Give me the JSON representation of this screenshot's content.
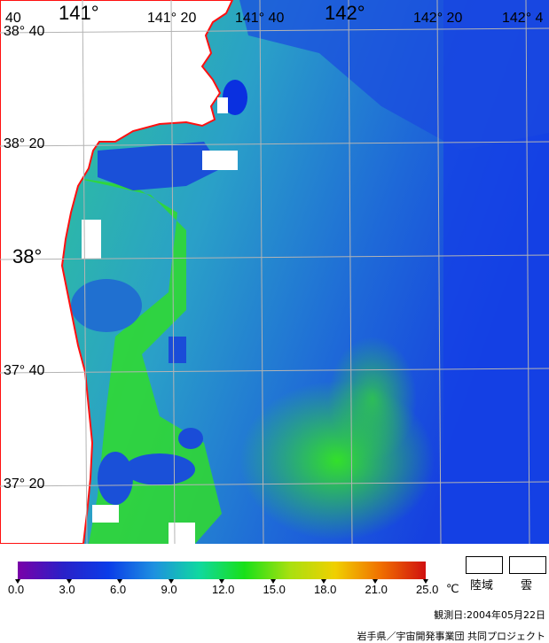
{
  "map": {
    "lon_labels": [
      {
        "text": "141°",
        "style": "big"
      },
      {
        "text": "141° 20",
        "style": "small"
      },
      {
        "text": "141° 40",
        "style": "small"
      },
      {
        "text": "142°",
        "style": "big"
      },
      {
        "text": "142° 20",
        "style": "small"
      },
      {
        "text": "142° 4",
        "style": "small"
      }
    ],
    "lat_labels": [
      {
        "text": "38° 40",
        "style": "small"
      },
      {
        "text": "38° 20",
        "style": "small"
      },
      {
        "text": "38°",
        "style": "big"
      },
      {
        "text": "37° 40",
        "style": "small"
      },
      {
        "text": "37° 20",
        "style": "small"
      }
    ],
    "corner_label": "40",
    "colors": {
      "land": "#ffffff",
      "coastline": "#ff0000",
      "grid": "#b8b8b8",
      "cold": "#1a3cd8",
      "mid": "#2f8fd0",
      "warm": "#2fd02f"
    }
  },
  "colorbar": {
    "ticks": [
      "0.0",
      "3.0",
      "6.0",
      "9.0",
      "12.0",
      "15.0",
      "18.0",
      "21.0",
      "25.0"
    ],
    "unit": "℃",
    "gradient": [
      "#7a00a8",
      "#2a20c8",
      "#0a3ce8",
      "#1e90e0",
      "#10d8a0",
      "#18e018",
      "#a8e010",
      "#f0d000",
      "#f07000",
      "#d01010"
    ]
  },
  "legend": {
    "land_label": "陸域",
    "cloud_label": "雲"
  },
  "observation": "観測日:2004年05月22日",
  "credit": "岩手県／宇宙開発事業団 共同プロジェクト"
}
